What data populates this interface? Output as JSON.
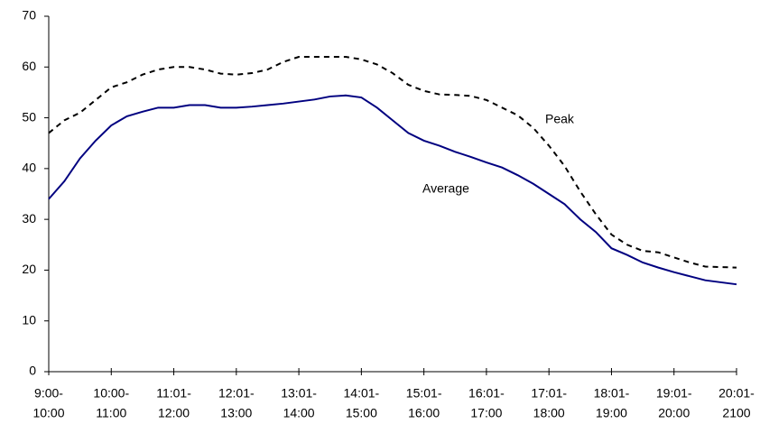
{
  "chart_data": {
    "type": "line",
    "x": [
      0,
      0.25,
      0.5,
      0.75,
      1,
      1.25,
      1.5,
      1.75,
      2,
      2.25,
      2.5,
      2.75,
      3,
      3.25,
      3.5,
      3.75,
      4,
      4.25,
      4.5,
      4.75,
      5,
      5.25,
      5.5,
      5.75,
      6,
      6.25,
      6.5,
      6.75,
      7,
      7.25,
      7.5,
      7.75,
      8,
      8.25,
      8.5,
      8.75,
      9,
      9.25,
      9.5,
      9.75,
      10,
      10.25,
      10.5,
      11
    ],
    "series": [
      {
        "name": "Peak",
        "color": "#000000",
        "dashed": true,
        "values": [
          47,
          49.5,
          51,
          53.5,
          56,
          57,
          58.5,
          59.5,
          60,
          60,
          59.5,
          58.7,
          58.5,
          58.8,
          59.5,
          61,
          62,
          62,
          62,
          62,
          61.5,
          60.5,
          58.8,
          56.5,
          55.3,
          54.6,
          54.5,
          54.3,
          53.5,
          52,
          50.5,
          48,
          44.5,
          40.5,
          35.5,
          31,
          27,
          25,
          23.8,
          23.5,
          22.5,
          21.5,
          20.7,
          20.5
        ]
      },
      {
        "name": "Average",
        "color": "#000080",
        "dashed": false,
        "values": [
          34,
          37.5,
          42,
          45.5,
          48.5,
          50.3,
          51.2,
          52,
          52,
          52.5,
          52.5,
          52,
          52,
          52.2,
          52.5,
          52.8,
          53.2,
          53.6,
          54.2,
          54.4,
          54,
          52,
          49.5,
          47,
          45.5,
          44.5,
          43.3,
          42.3,
          41.2,
          40.2,
          38.7,
          37,
          35,
          33,
          30,
          27.5,
          24.3,
          23,
          21.5,
          20.5,
          19.6,
          18.8,
          18,
          17.2
        ]
      }
    ],
    "xlim": [
      0,
      11
    ],
    "xticks": [
      {
        "value": 0,
        "label": [
          "9:00-",
          "10:00"
        ]
      },
      {
        "value": 1,
        "label": [
          "10:00-",
          "11:00"
        ]
      },
      {
        "value": 2,
        "label": [
          "11:01-",
          "12:00"
        ]
      },
      {
        "value": 3,
        "label": [
          "12:01-",
          "13:00"
        ]
      },
      {
        "value": 4,
        "label": [
          "13:01-",
          "14:00"
        ]
      },
      {
        "value": 5,
        "label": [
          "14:01-",
          "15:00"
        ]
      },
      {
        "value": 6,
        "label": [
          "15:01-",
          "16:00"
        ]
      },
      {
        "value": 7,
        "label": [
          "16:01-",
          "17:00"
        ]
      },
      {
        "value": 8,
        "label": [
          "17:01-",
          "18:00"
        ]
      },
      {
        "value": 9,
        "label": [
          "18:01-",
          "19:00"
        ]
      },
      {
        "value": 10,
        "label": [
          "19:01-",
          "20:00"
        ]
      },
      {
        "value": 11,
        "label": [
          "20:01-",
          "2100"
        ]
      }
    ],
    "ylim": [
      0,
      70
    ],
    "yticks": [
      0,
      10,
      20,
      30,
      40,
      50,
      60,
      70
    ],
    "grid": false
  }
}
